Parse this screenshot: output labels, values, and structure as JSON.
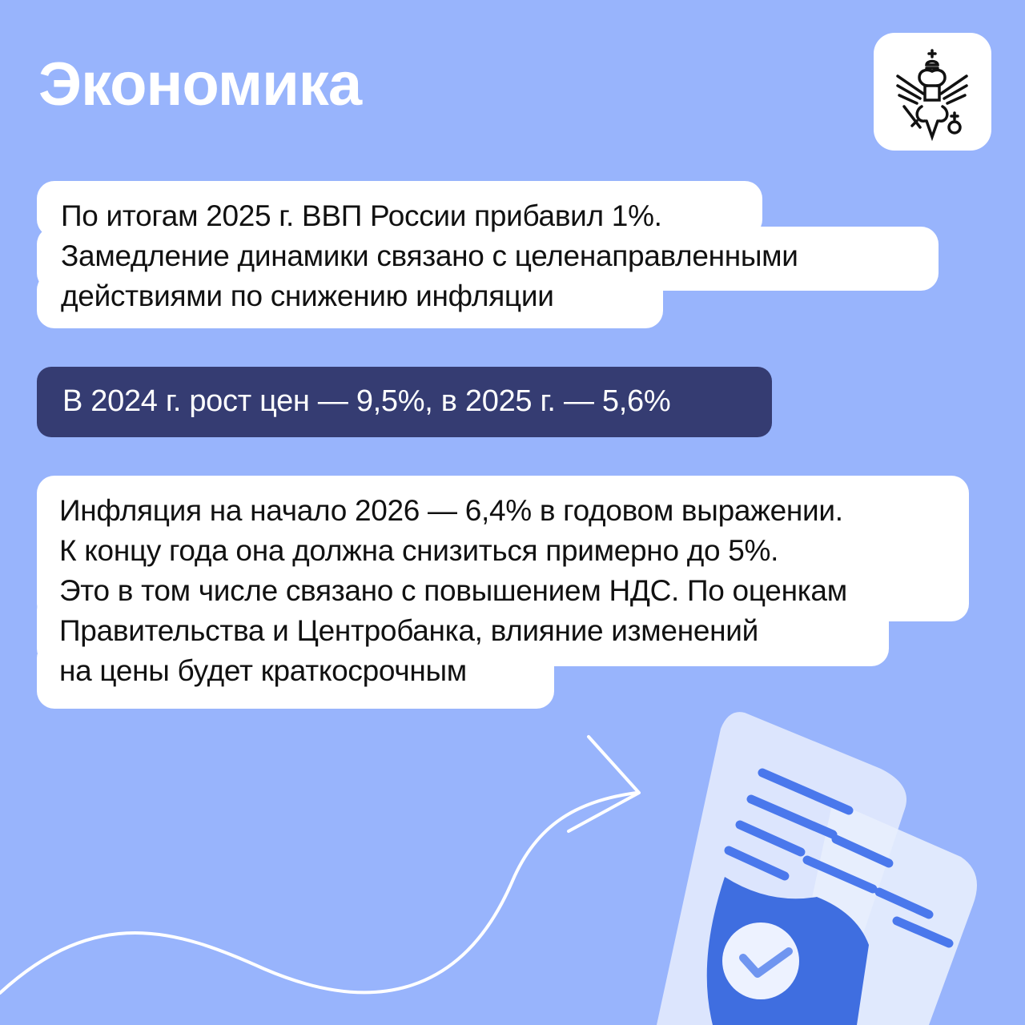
{
  "header": {
    "title": "Экономика",
    "logo": "coat-of-arms-eagle"
  },
  "blocks": {
    "gdp": {
      "lines": [
        "По итогам 2025 г. ВВП России прибавил 1%.",
        "Замедление динамики связано с целенаправленными",
        "действиями по снижению инфляции"
      ]
    },
    "prices": {
      "text": "В 2024 г. рост цен — 9,5%, в 2025 г. — 5,6%"
    },
    "inflation": {
      "lines": [
        "Инфляция на начало 2026 — 6,4% в годовом выражении.",
        "К концу года она должна снизиться примерно до 5%.",
        "Это в том числе связано с повышением НДС. По оценкам",
        "Правительства и Центробанка, влияние изменений",
        "на цены будет краткосрочным"
      ]
    }
  },
  "colors": {
    "background": "#98b4fc",
    "dark_box": "#353c72",
    "card": "#ffffff",
    "accent": "#4a78ec"
  },
  "illustration": {
    "icons": [
      "curved-arrow",
      "document-with-shield-check"
    ]
  }
}
